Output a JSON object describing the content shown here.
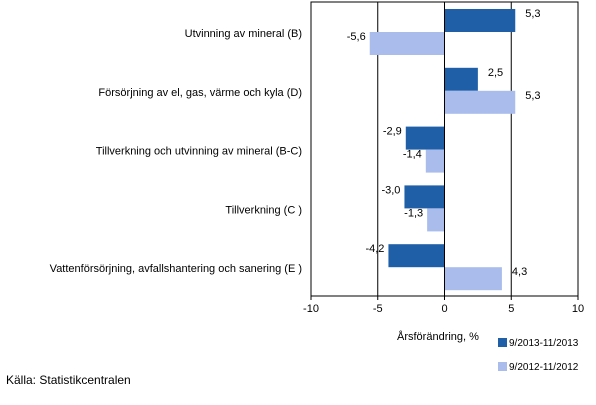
{
  "chart_data": {
    "type": "bar",
    "orientation": "horizontal",
    "categories": [
      "Utvinning av mineral  (B)",
      "Försörjning av el, gas, värme och kyla (D)",
      "Tillverkning och utvinning av mineral (B-C)",
      "Tillverkning (C )",
      "Vattenförsörjning, avfallshantering och sanering (E )"
    ],
    "series": [
      {
        "name": "9/2013-11/2013",
        "values": [
          5.3,
          2.5,
          -2.9,
          -3.0,
          -4.2
        ],
        "labels": [
          "5,3",
          "2,5",
          "-2,9",
          "-3,0",
          "-4,2"
        ],
        "color": "#1f5fa8"
      },
      {
        "name": "9/2012-11/2012",
        "values": [
          -5.6,
          5.3,
          -1.4,
          -1.3,
          4.3
        ],
        "labels": [
          "-5,6",
          "5,3",
          "-1,4",
          "-1,3",
          "4,3"
        ],
        "color": "#a9bcec"
      }
    ],
    "xlim": [
      -10,
      10
    ],
    "xticks": [
      -10,
      -5,
      0,
      5,
      10
    ],
    "xtick_labels": [
      "-10",
      "-5",
      "0",
      "5",
      "10"
    ],
    "xlabel": "Årsförändring, %",
    "grid": "vertical",
    "legend_position": "bottom-right"
  },
  "source": "Källa: Statistikcentralen"
}
